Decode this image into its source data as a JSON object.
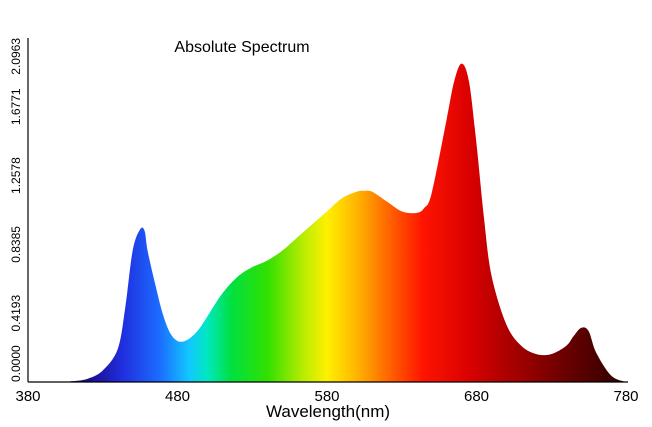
{
  "chart_data": {
    "type": "area",
    "title": "Absolute Spectrum",
    "xlabel": "Wavelength(nm)",
    "ylabel": "",
    "xlim": [
      380,
      780
    ],
    "ylim": [
      0,
      2.0963
    ],
    "xticks": [
      "380",
      "480",
      "580",
      "680",
      "780"
    ],
    "yticks": [
      "0.0000",
      "0.4193",
      "0.8385",
      "1.2578",
      "1.6771",
      "2.0963"
    ],
    "grid": false,
    "legend": "none",
    "fill": "visible-spectrum-gradient",
    "x": [
      380,
      400,
      410,
      420,
      430,
      440,
      445,
      450,
      455,
      458,
      460,
      465,
      470,
      475,
      480,
      485,
      490,
      495,
      500,
      510,
      520,
      530,
      540,
      550,
      560,
      570,
      580,
      590,
      600,
      605,
      610,
      620,
      630,
      640,
      645,
      650,
      660,
      665,
      670,
      675,
      680,
      685,
      690,
      700,
      710,
      720,
      730,
      740,
      745,
      750,
      755,
      760,
      770,
      780
    ],
    "values": [
      0.0,
      0.0,
      0.005,
      0.02,
      0.07,
      0.2,
      0.45,
      0.8,
      0.93,
      0.92,
      0.8,
      0.6,
      0.42,
      0.3,
      0.25,
      0.25,
      0.28,
      0.33,
      0.4,
      0.54,
      0.64,
      0.7,
      0.74,
      0.8,
      0.88,
      0.96,
      1.04,
      1.12,
      1.16,
      1.165,
      1.16,
      1.1,
      1.04,
      1.03,
      1.06,
      1.15,
      1.6,
      1.83,
      1.94,
      1.83,
      1.45,
      1.0,
      0.65,
      0.35,
      0.22,
      0.17,
      0.17,
      0.22,
      0.28,
      0.33,
      0.31,
      0.18,
      0.04,
      0.0
    ]
  }
}
